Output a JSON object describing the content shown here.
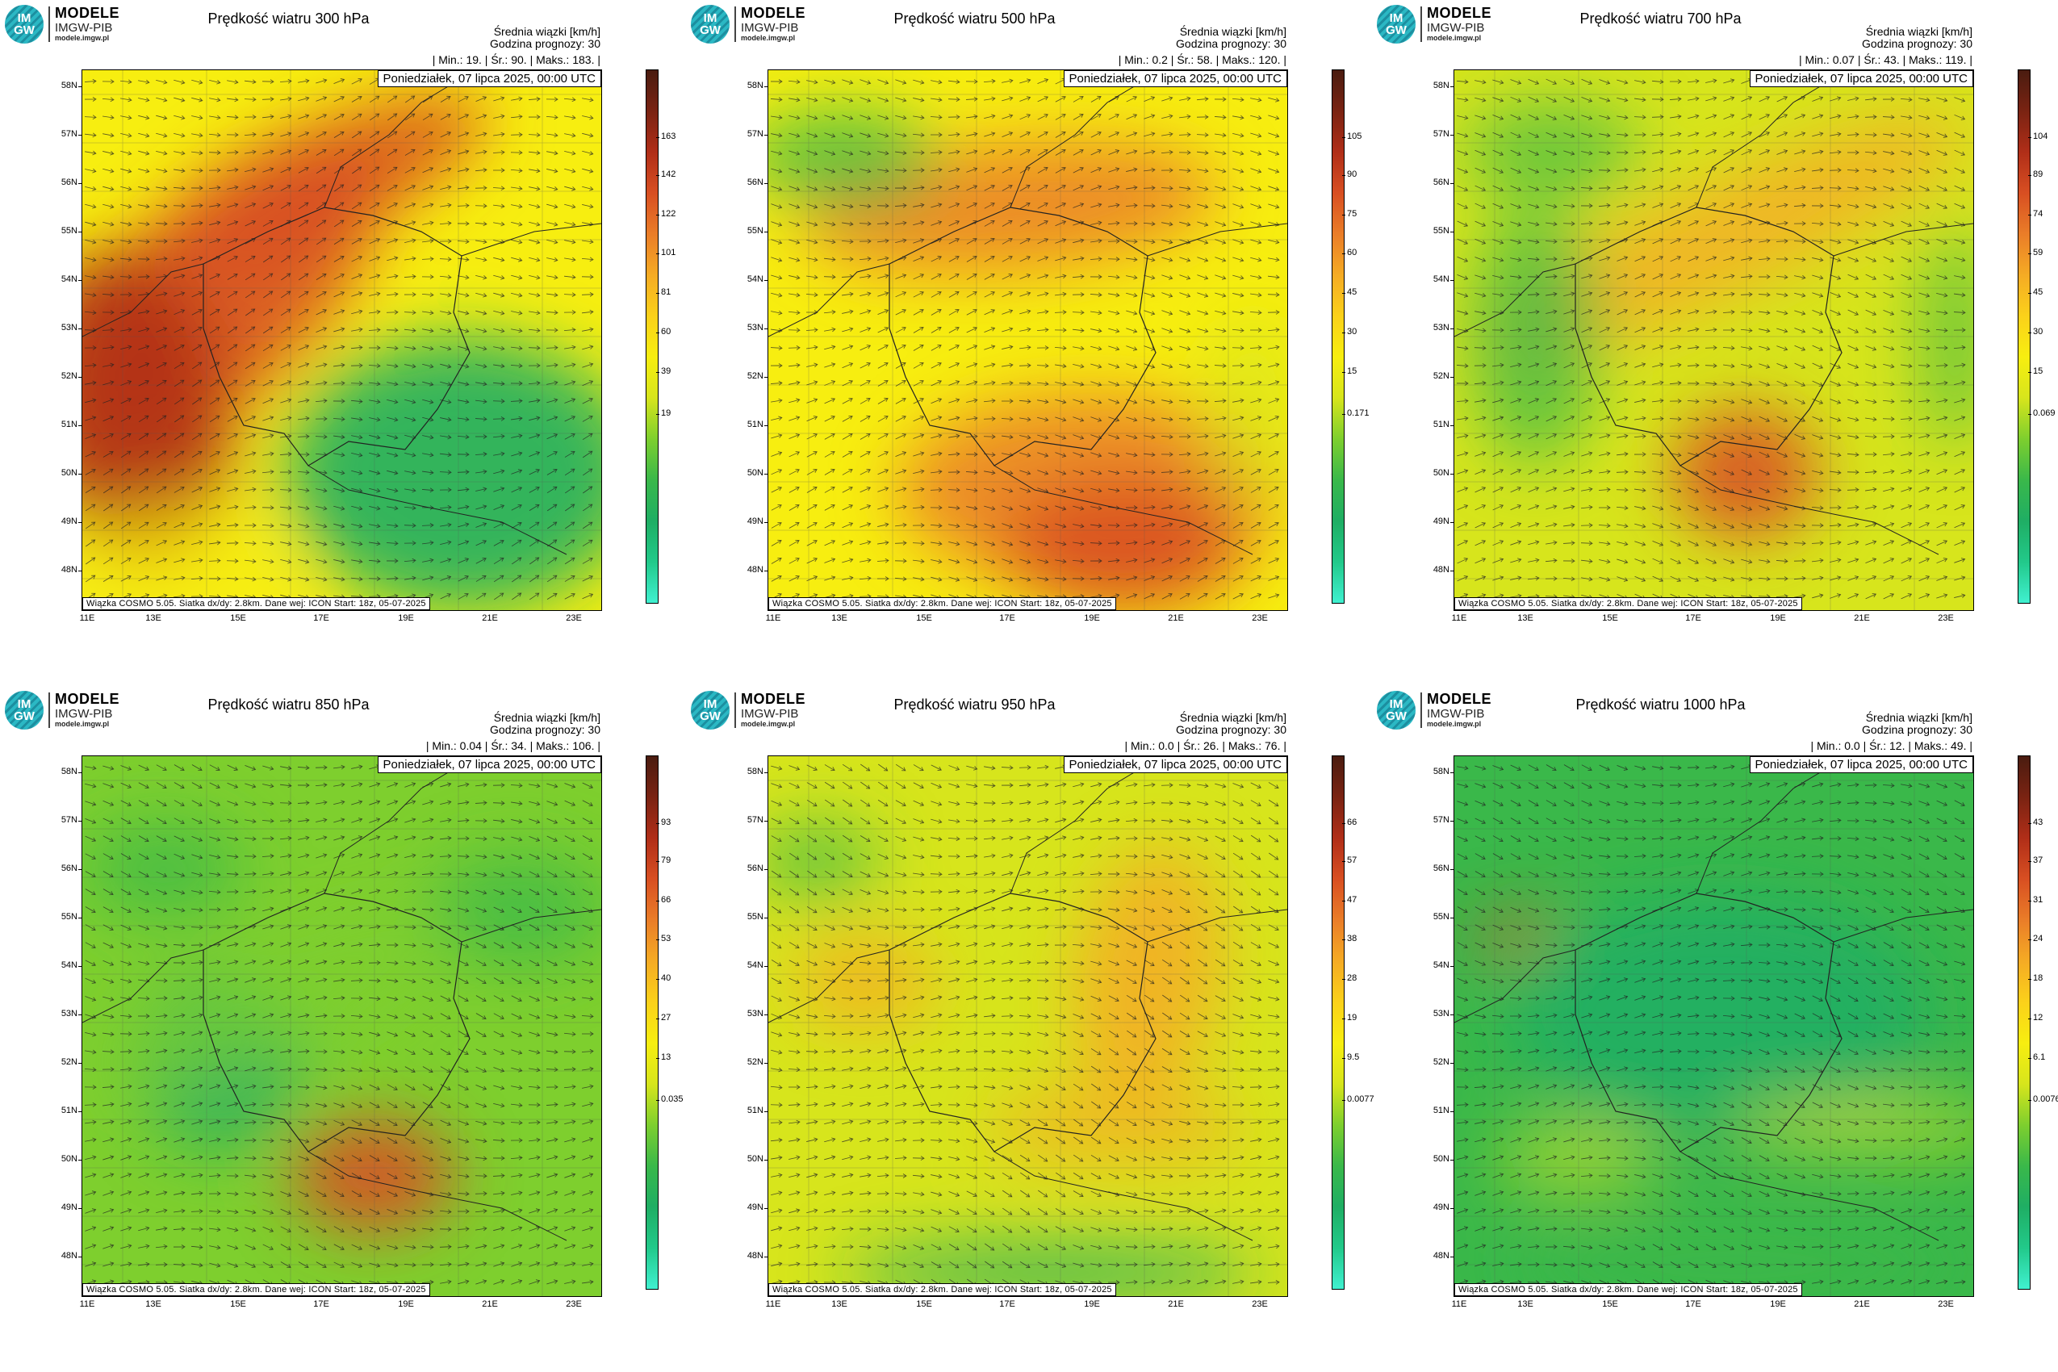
{
  "colors": {
    "scale": [
      "#40f0d0",
      "#22c98a",
      "#1fae64",
      "#3ab84a",
      "#7ecf2e",
      "#d7e51c",
      "#f7ee10",
      "#fbd11a",
      "#f5ab24",
      "#ea7d28",
      "#d84f22",
      "#b02e18",
      "#7a2312",
      "#4a1c10"
    ]
  },
  "logo": {
    "line1": "MODELE",
    "line2": "IMGW-PIB",
    "line3": "modele.imgw.pl",
    "circle_top": "IM",
    "circle_bottom": "GW"
  },
  "common": {
    "subtitle": "Średnia wiązki [km/h]",
    "forecast_hour": "Godzina prognozy: 30",
    "date": "Poniedziałek, 07 lipca 2025, 00:00 UTC",
    "credits": "Wiązka COSMO 5.05. Siatka dx/dy: 2.8km. Dane wej: ICON Start: 18z, 05-07-2025",
    "lat_labels": [
      "58N",
      "57N",
      "56N",
      "55N",
      "54N",
      "53N",
      "52N",
      "51N",
      "50N",
      "49N",
      "48N"
    ],
    "lon_labels": [
      "11E",
      "13E",
      "15E",
      "17E",
      "19E",
      "21E",
      "23E"
    ]
  },
  "panels": [
    {
      "title": "Prędkość wiatru 300 hPa",
      "stats": "| Min.: 19. | Śr.: 90. | Maks.: 183. |",
      "min": 19,
      "mean": 90,
      "max": 183,
      "cbar_ticks": [
        "163",
        "142",
        "122",
        "101",
        "81",
        "60",
        "39",
        "19"
      ]
    },
    {
      "title": "Prędkość wiatru 500 hPa",
      "stats": "| Min.: 0.2 | Śr.: 58. | Maks.: 120. |",
      "min": 0.2,
      "mean": 58,
      "max": 120,
      "cbar_ticks": [
        "105",
        "90",
        "75",
        "60",
        "45",
        "30",
        "15",
        "0.171"
      ]
    },
    {
      "title": "Prędkość wiatru 700 hPa",
      "stats": "| Min.: 0.07 | Śr.: 43. | Maks.: 119. |",
      "min": 0.07,
      "mean": 43,
      "max": 119,
      "cbar_ticks": [
        "104",
        "89",
        "74",
        "59",
        "45",
        "30",
        "15",
        "0.069"
      ]
    },
    {
      "title": "Prędkość wiatru 850 hPa",
      "stats": "| Min.: 0.04 | Śr.: 34. | Maks.: 106. |",
      "min": 0.04,
      "mean": 34,
      "max": 106,
      "cbar_ticks": [
        "93",
        "79",
        "66",
        "53",
        "40",
        "27",
        "13",
        "0.035"
      ]
    },
    {
      "title": "Prędkość wiatru 950 hPa",
      "stats": "| Min.: 0.0 | Śr.: 26. | Maks.: 76. |",
      "min": 0.0,
      "mean": 26,
      "max": 76,
      "cbar_ticks": [
        "66",
        "57",
        "47",
        "38",
        "28",
        "19",
        "9.5",
        "0.0077"
      ]
    },
    {
      "title": "Prędkość wiatru 1000 hPa",
      "stats": "| Min.: 0.0 | Śr.: 12. | Maks.: 49. |",
      "min": 0.0,
      "mean": 12,
      "max": 49,
      "cbar_ticks": [
        "43",
        "37",
        "31",
        "24",
        "18",
        "12",
        "6.1",
        "0.0076"
      ]
    }
  ]
}
